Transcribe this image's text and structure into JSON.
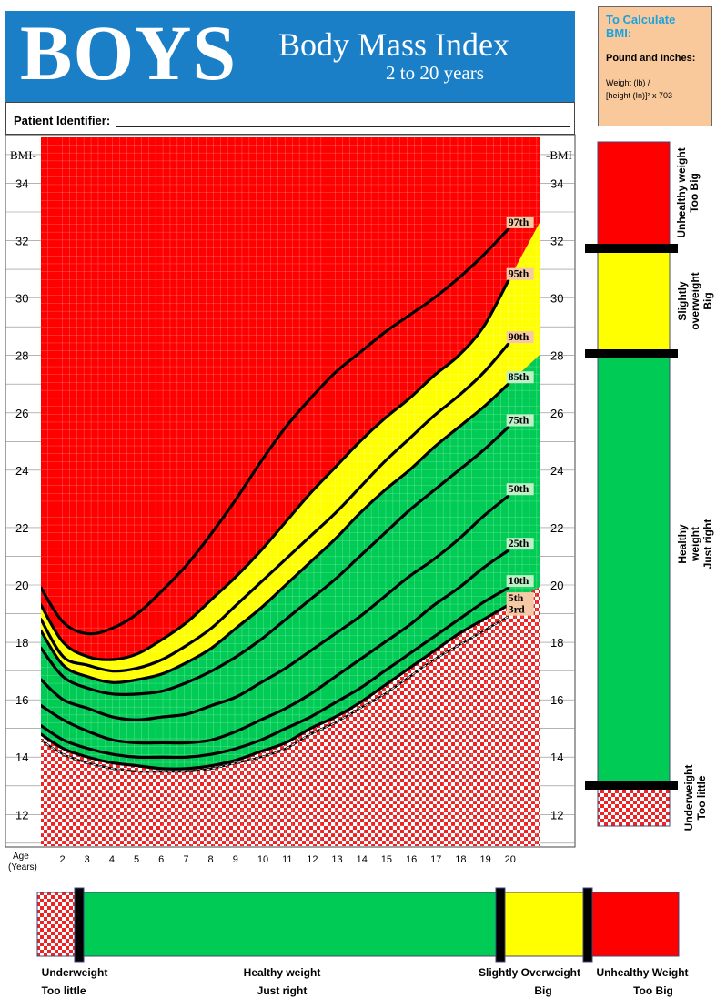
{
  "header": {
    "boys": "BOYS",
    "title": "Body Mass Index",
    "age_range": "2 to 20 years"
  },
  "calc": {
    "title": "To Calculate BMI:",
    "subtitle": "Pound and Inches:",
    "formula_line1": "Weight (lb) /",
    "formula_line2": "[height (In)]² x 703"
  },
  "patient": {
    "label": "Patient Identifier:"
  },
  "colors": {
    "red": "#ff0000",
    "yellow": "#ffff00",
    "green": "#00cc55",
    "check_red": "#ee2222",
    "header_blue": "#1b7fc8",
    "calc_bg": "#f9c89b"
  },
  "chart_data": {
    "type": "line",
    "xlabel": "Age (Years)",
    "ylabel": "BMI",
    "xlim": [
      1.1,
      21.3
    ],
    "ylim": [
      10.9,
      35.6
    ],
    "yticks": [
      12,
      14,
      16,
      18,
      20,
      22,
      24,
      26,
      28,
      30,
      32,
      34
    ],
    "xticks": [
      2,
      3,
      4,
      5,
      6,
      7,
      8,
      9,
      10,
      11,
      12,
      13,
      14,
      15,
      16,
      17,
      18,
      19,
      20
    ],
    "series": [
      {
        "name": "97th",
        "x": [
          1.1,
          2,
          3,
          4,
          5,
          6,
          7,
          8,
          9,
          10,
          11,
          12,
          13,
          14,
          15,
          16,
          17,
          18,
          19,
          20
        ],
        "y": [
          19.9,
          18.7,
          18.3,
          18.5,
          19.0,
          19.8,
          20.7,
          21.8,
          23.0,
          24.3,
          25.5,
          26.5,
          27.4,
          28.1,
          28.8,
          29.4,
          30.0,
          30.7,
          31.5,
          32.4
        ]
      },
      {
        "name": "95th",
        "x": [
          1.1,
          2,
          3,
          4,
          5,
          6,
          7,
          8,
          9,
          10,
          11,
          12,
          13,
          14,
          15,
          16,
          17,
          18,
          19,
          20
        ],
        "y": [
          19.3,
          18.0,
          17.5,
          17.4,
          17.6,
          18.1,
          18.7,
          19.5,
          20.3,
          21.2,
          22.2,
          23.2,
          24.1,
          25.0,
          25.8,
          26.5,
          27.3,
          28.0,
          29.0,
          30.6
        ]
      },
      {
        "name": "90th",
        "x": [
          1.1,
          2,
          3,
          4,
          5,
          6,
          7,
          8,
          9,
          10,
          11,
          12,
          13,
          14,
          15,
          16,
          17,
          18,
          19,
          20
        ],
        "y": [
          18.8,
          17.5,
          17.2,
          17.0,
          17.1,
          17.4,
          17.9,
          18.5,
          19.3,
          20.1,
          20.9,
          21.7,
          22.5,
          23.4,
          24.3,
          25.1,
          25.9,
          26.6,
          27.4,
          28.4
        ]
      },
      {
        "name": "85th",
        "x": [
          1.1,
          2,
          3,
          4,
          5,
          6,
          7,
          8,
          9,
          10,
          11,
          12,
          13,
          14,
          15,
          16,
          17,
          18,
          19,
          20
        ],
        "y": [
          18.4,
          17.2,
          16.8,
          16.6,
          16.7,
          16.9,
          17.3,
          17.8,
          18.5,
          19.2,
          20.0,
          20.8,
          21.6,
          22.5,
          23.3,
          24.0,
          24.8,
          25.5,
          26.2,
          27.0
        ]
      },
      {
        "name": "75th",
        "x": [
          1.1,
          2,
          3,
          4,
          5,
          6,
          7,
          8,
          9,
          10,
          11,
          12,
          13,
          14,
          15,
          16,
          17,
          18,
          19,
          20
        ],
        "y": [
          17.8,
          16.8,
          16.4,
          16.2,
          16.2,
          16.3,
          16.6,
          17.0,
          17.5,
          18.1,
          18.8,
          19.5,
          20.2,
          21.0,
          21.8,
          22.6,
          23.3,
          24.0,
          24.7,
          25.5
        ]
      },
      {
        "name": "50th",
        "x": [
          1.1,
          2,
          3,
          4,
          5,
          6,
          7,
          8,
          9,
          10,
          11,
          12,
          13,
          14,
          15,
          16,
          17,
          18,
          19,
          20
        ],
        "y": [
          16.7,
          16.0,
          15.7,
          15.4,
          15.3,
          15.4,
          15.5,
          15.8,
          16.1,
          16.6,
          17.1,
          17.7,
          18.3,
          18.9,
          19.6,
          20.3,
          20.9,
          21.6,
          22.4,
          23.1
        ]
      },
      {
        "name": "25th",
        "x": [
          1.1,
          2,
          3,
          4,
          5,
          6,
          7,
          8,
          9,
          10,
          11,
          12,
          13,
          14,
          15,
          16,
          17,
          18,
          19,
          20
        ],
        "y": [
          15.8,
          15.3,
          14.9,
          14.6,
          14.5,
          14.5,
          14.5,
          14.6,
          14.9,
          15.3,
          15.7,
          16.2,
          16.8,
          17.4,
          18.0,
          18.6,
          19.3,
          19.9,
          20.6,
          21.2
        ]
      },
      {
        "name": "10th",
        "x": [
          1.1,
          2,
          3,
          4,
          5,
          6,
          7,
          8,
          9,
          10,
          11,
          12,
          13,
          14,
          15,
          16,
          17,
          18,
          19,
          20
        ],
        "y": [
          15.1,
          14.6,
          14.3,
          14.1,
          14.0,
          14.0,
          14.0,
          14.1,
          14.3,
          14.6,
          15.0,
          15.4,
          15.9,
          16.4,
          17.0,
          17.6,
          18.2,
          18.8,
          19.4,
          19.9
        ]
      },
      {
        "name": "5th",
        "x": [
          1.1,
          2,
          3,
          4,
          5,
          6,
          7,
          8,
          9,
          10,
          11,
          12,
          13,
          14,
          15,
          16,
          17,
          18,
          19,
          20
        ],
        "y": [
          14.8,
          14.3,
          14.0,
          13.8,
          13.7,
          13.6,
          13.6,
          13.7,
          13.9,
          14.2,
          14.5,
          15.0,
          15.4,
          15.9,
          16.5,
          17.1,
          17.7,
          18.3,
          18.8,
          19.3
        ]
      },
      {
        "name": "3rd",
        "x": [
          1.1,
          2,
          3,
          4,
          5,
          6,
          7,
          8,
          9,
          10,
          11,
          12,
          13,
          14,
          15,
          16,
          17,
          18,
          19,
          20
        ],
        "y": [
          14.6,
          14.1,
          13.8,
          13.6,
          13.5,
          13.5,
          13.5,
          13.6,
          13.8,
          14.0,
          14.3,
          14.8,
          15.2,
          15.7,
          16.2,
          16.8,
          17.4,
          17.9,
          18.4,
          18.9
        ]
      }
    ],
    "zones": [
      {
        "name": "Unhealthy weight",
        "color": "#ff0000",
        "between": [
          "95th",
          "top"
        ]
      },
      {
        "name": "Slightly overweight",
        "color": "#ffff00",
        "between": [
          "85th",
          "95th"
        ]
      },
      {
        "name": "Healthy weight",
        "color": "#00cc55",
        "between": [
          "5th",
          "85th"
        ]
      },
      {
        "name": "Underweight",
        "color": "checkered",
        "between": [
          "bottom",
          "5th"
        ]
      }
    ]
  },
  "right_legend": {
    "unhealthy": [
      "Unhealthy weight",
      "Too Big"
    ],
    "slightly": [
      "Slightly",
      "overweight",
      "Big"
    ],
    "healthy": [
      "Healthy",
      "weight",
      "Just right"
    ],
    "under": [
      "Underweight",
      "Too little"
    ]
  },
  "bottom_legend": {
    "under_1": "Underweight",
    "under_2": "Too little",
    "healthy_1": "Healthy weight",
    "healthy_2": "Just right",
    "slightly_1": "Slightly Overweight",
    "slightly_2": "Big",
    "unhealthy_1": "Unhealthy Weight",
    "unhealthy_2": "Too Big"
  }
}
